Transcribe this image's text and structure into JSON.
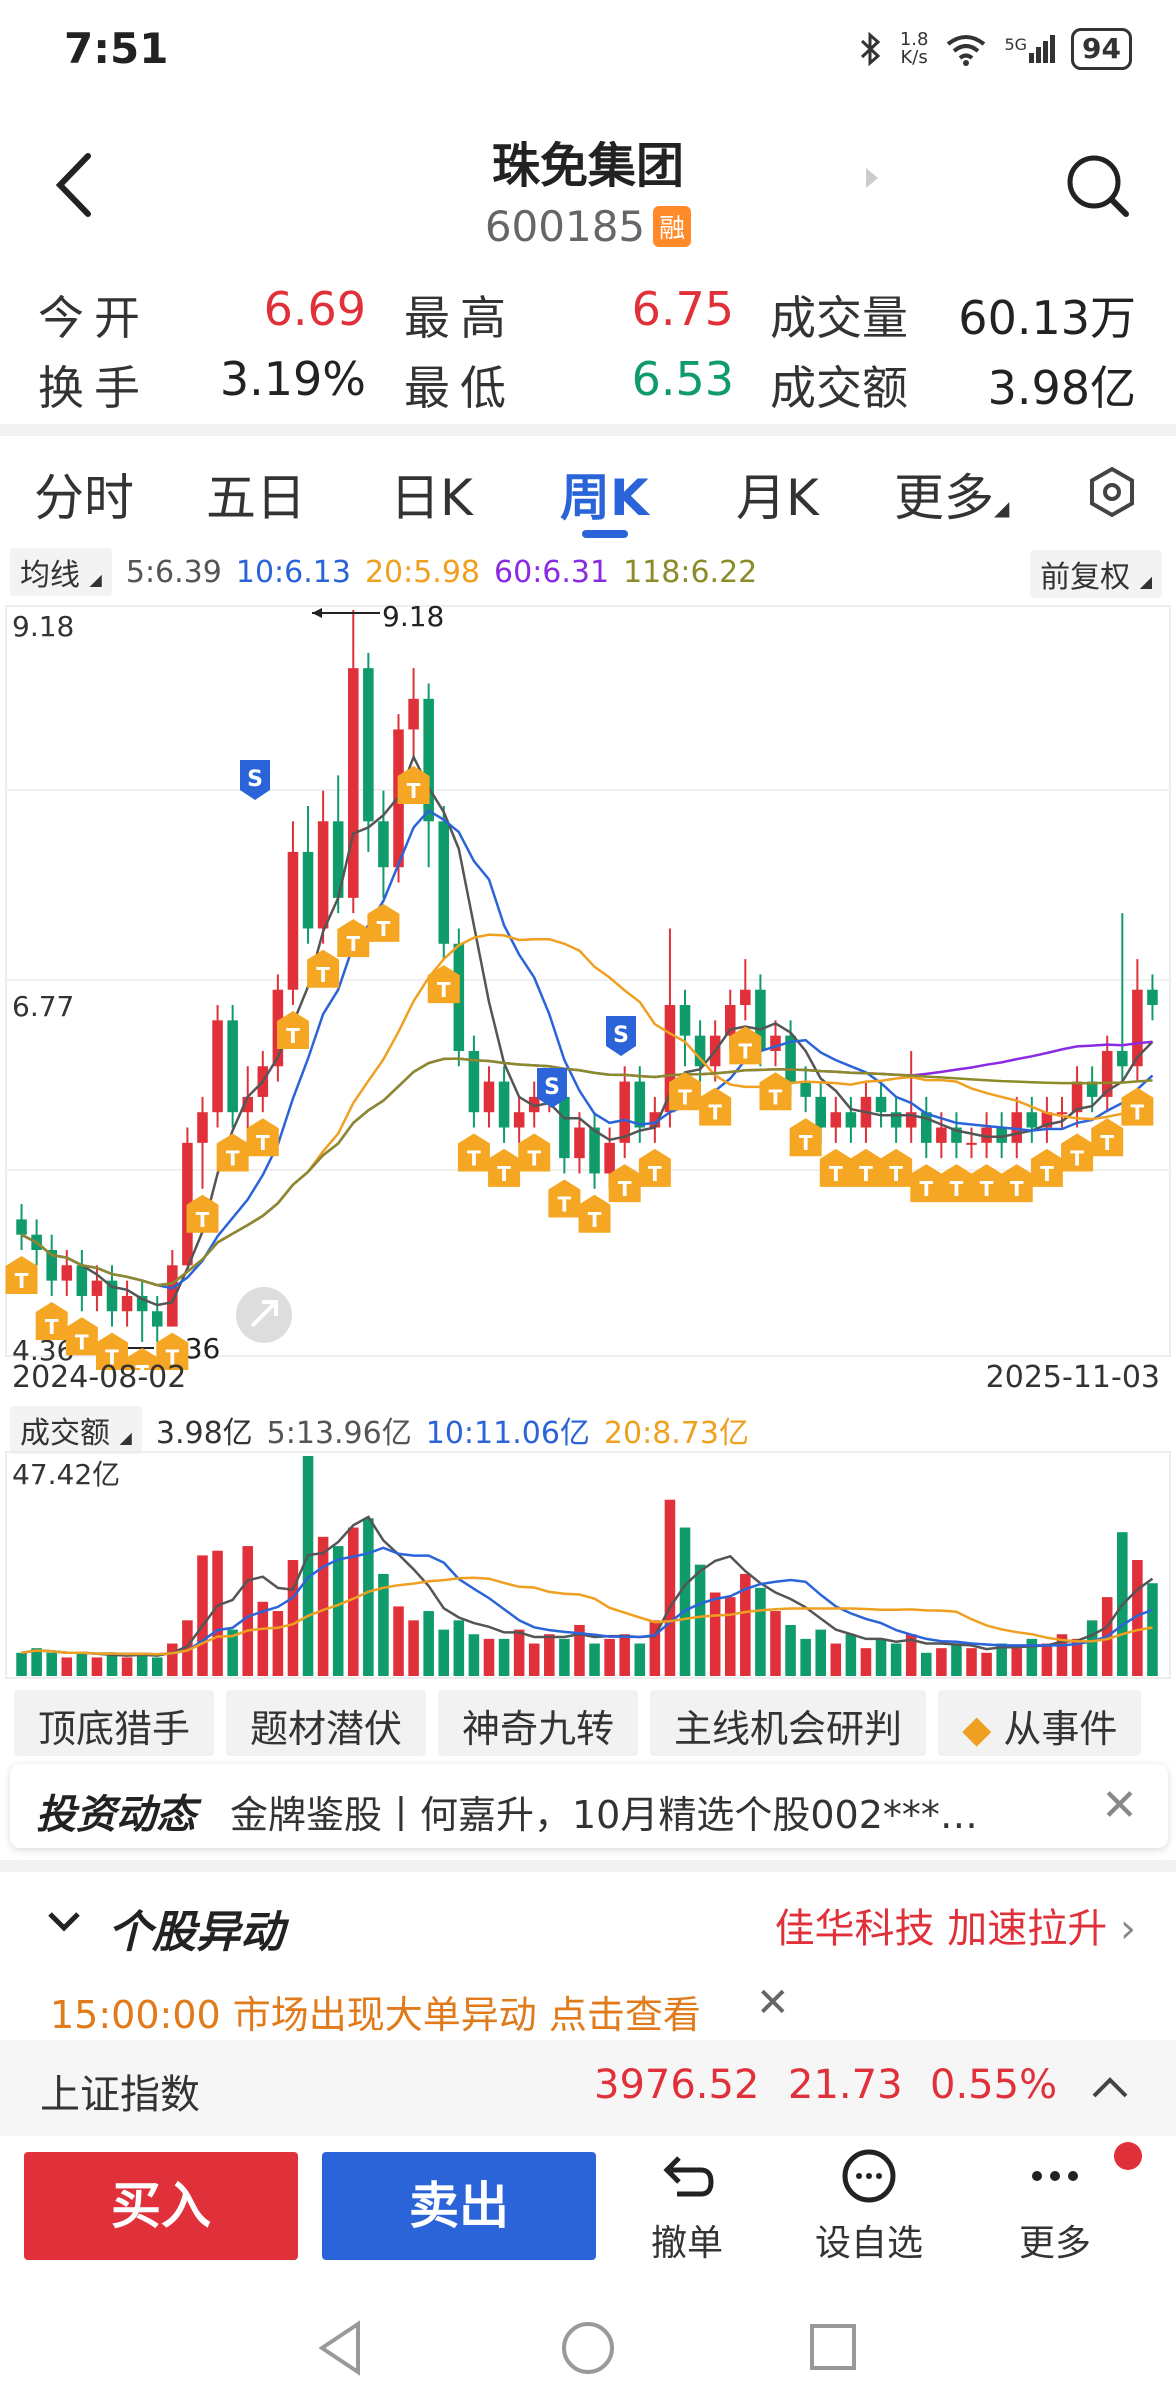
{
  "status": {
    "time": "7:51",
    "net_speed": "1.8\nK/s",
    "net_speed_top": "1.8",
    "net_speed_bottom": "K/s",
    "signal": "5G",
    "battery": "94"
  },
  "header": {
    "name": "珠免集团",
    "code": "600185",
    "badge": "融"
  },
  "quote": {
    "open_label": "今开",
    "open": "6.69",
    "high_label": "最高",
    "high": "6.75",
    "volume_label": "成交量",
    "volume": "60.13万",
    "turnover_label": "换手",
    "turnover": "3.19%",
    "low_label": "最低",
    "low": "6.53",
    "amount_label": "成交额",
    "amount": "3.98亿"
  },
  "tabs": [
    "分时",
    "五日",
    "日K",
    "周K",
    "月K",
    "更多"
  ],
  "active_tab": "周K",
  "ma": {
    "chip": "均线",
    "ma5": "5:6.39",
    "ma10": "10:6.13",
    "ma20": "20:5.98",
    "ma60": "60:6.31",
    "ma118": "118:6.22",
    "adjust": "前复权"
  },
  "colors": {
    "up": "#e0313a",
    "down": "#0f9b6a",
    "ma5": "#555555",
    "ma10": "#2a64d8",
    "ma20": "#f0a020",
    "ma60": "#8a2be2",
    "ma118": "#8b8b2a",
    "accent": "#2a64d8"
  },
  "chart_data": {
    "type": "candlestick",
    "period": "weekly",
    "y_max_label": "9.18",
    "y_mid_label": "6.77",
    "y_min_label": "4.36",
    "max_annotation": "9.18",
    "min_annotation": "4.36",
    "date_start": "2024-08-02",
    "date_end": "2025-11-03",
    "ylim": [
      4.36,
      9.18
    ],
    "candles": [
      [
        5.2,
        5.1,
        5.3,
        5.0
      ],
      [
        5.1,
        5.0,
        5.2,
        4.9
      ],
      [
        5.0,
        4.8,
        5.1,
        4.7
      ],
      [
        4.8,
        4.9,
        5.0,
        4.7
      ],
      [
        4.9,
        4.7,
        5.0,
        4.6
      ],
      [
        4.7,
        4.8,
        4.9,
        4.6
      ],
      [
        4.8,
        4.6,
        4.9,
        4.5
      ],
      [
        4.6,
        4.7,
        4.8,
        4.5
      ],
      [
        4.7,
        4.6,
        4.8,
        4.4
      ],
      [
        4.6,
        4.5,
        4.7,
        4.4
      ],
      [
        4.5,
        4.9,
        5.0,
        4.5
      ],
      [
        4.9,
        5.7,
        5.8,
        4.9
      ],
      [
        5.7,
        5.9,
        6.0,
        5.4
      ],
      [
        5.9,
        6.5,
        6.6,
        5.8
      ],
      [
        6.5,
        5.9,
        6.6,
        5.8
      ],
      [
        5.9,
        6.0,
        6.2,
        5.7
      ],
      [
        6.0,
        6.2,
        6.3,
        5.9
      ],
      [
        6.2,
        6.7,
        6.8,
        6.1
      ],
      [
        6.7,
        7.6,
        7.8,
        6.6
      ],
      [
        7.6,
        7.1,
        7.9,
        7.0
      ],
      [
        7.1,
        7.8,
        8.0,
        7.0
      ],
      [
        7.8,
        7.3,
        8.1,
        7.2
      ],
      [
        7.3,
        8.8,
        9.18,
        7.2
      ],
      [
        8.8,
        7.8,
        8.9,
        7.6
      ],
      [
        7.8,
        7.5,
        8.0,
        7.3
      ],
      [
        7.5,
        8.4,
        8.5,
        7.4
      ],
      [
        8.4,
        8.6,
        8.8,
        8.2
      ],
      [
        8.6,
        7.8,
        8.7,
        7.5
      ],
      [
        7.8,
        7.0,
        7.9,
        6.9
      ],
      [
        7.0,
        6.3,
        7.1,
        6.2
      ],
      [
        6.3,
        5.9,
        6.4,
        5.8
      ],
      [
        5.9,
        6.1,
        6.2,
        5.8
      ],
      [
        6.1,
        5.8,
        6.2,
        5.7
      ],
      [
        5.8,
        5.9,
        6.0,
        5.7
      ],
      [
        5.9,
        6.0,
        6.1,
        5.8
      ],
      [
        6.0,
        6.0,
        6.1,
        5.9
      ],
      [
        6.0,
        5.6,
        6.1,
        5.5
      ],
      [
        5.6,
        5.8,
        5.9,
        5.5
      ],
      [
        5.8,
        5.5,
        5.9,
        5.4
      ],
      [
        5.5,
        5.7,
        5.8,
        5.4
      ],
      [
        5.7,
        6.1,
        6.2,
        5.6
      ],
      [
        6.1,
        5.8,
        6.2,
        5.7
      ],
      [
        5.8,
        5.9,
        6.0,
        5.7
      ],
      [
        5.9,
        6.6,
        7.1,
        5.8
      ],
      [
        6.6,
        6.4,
        6.7,
        6.2
      ],
      [
        6.4,
        6.2,
        6.5,
        6.1
      ],
      [
        6.2,
        6.4,
        6.5,
        6.1
      ],
      [
        6.4,
        6.6,
        6.7,
        6.3
      ],
      [
        6.6,
        6.7,
        6.9,
        6.5
      ],
      [
        6.7,
        6.3,
        6.8,
        6.2
      ],
      [
        6.3,
        6.4,
        6.5,
        6.2
      ],
      [
        6.4,
        6.1,
        6.5,
        6.0
      ],
      [
        6.1,
        6.0,
        6.2,
        5.9
      ],
      [
        6.0,
        5.8,
        6.1,
        5.7
      ],
      [
        5.8,
        5.9,
        6.0,
        5.7
      ],
      [
        5.9,
        5.8,
        6.0,
        5.7
      ],
      [
        5.8,
        6.0,
        6.1,
        5.7
      ],
      [
        6.0,
        5.9,
        6.1,
        5.8
      ],
      [
        5.9,
        5.8,
        6.0,
        5.7
      ],
      [
        5.8,
        5.9,
        6.3,
        5.7
      ],
      [
        5.9,
        5.7,
        6.0,
        5.6
      ],
      [
        5.7,
        5.8,
        5.9,
        5.6
      ],
      [
        5.8,
        5.7,
        5.9,
        5.6
      ],
      [
        5.7,
        5.7,
        5.8,
        5.6
      ],
      [
        5.7,
        5.8,
        5.9,
        5.6
      ],
      [
        5.8,
        5.7,
        5.9,
        5.6
      ],
      [
        5.7,
        5.9,
        6.0,
        5.6
      ],
      [
        5.9,
        5.8,
        6.0,
        5.7
      ],
      [
        5.8,
        5.9,
        6.0,
        5.7
      ],
      [
        5.9,
        5.9,
        6.0,
        5.8
      ],
      [
        5.9,
        6.1,
        6.2,
        5.8
      ],
      [
        6.1,
        6.0,
        6.2,
        5.9
      ],
      [
        6.0,
        6.3,
        6.4,
        5.9
      ],
      [
        6.3,
        6.2,
        7.2,
        6.1
      ],
      [
        6.2,
        6.7,
        6.9,
        6.1
      ],
      [
        6.7,
        6.6,
        6.8,
        6.5
      ]
    ],
    "volume": {
      "label": "成交额",
      "current": "3.98亿",
      "ma5": "5:13.96亿",
      "ma10": "10:11.06亿",
      "ma20": "20:8.73亿",
      "max_label": "47.42亿",
      "values": [
        5,
        6,
        5,
        4,
        5,
        4,
        5,
        4,
        5,
        4,
        7,
        12,
        26,
        27,
        10,
        28,
        16,
        14,
        25,
        47.42,
        30,
        28,
        32,
        34,
        22,
        15,
        12,
        14,
        10,
        12,
        9,
        8,
        8,
        10,
        7,
        9,
        8,
        11,
        7,
        8,
        9,
        7,
        12,
        38,
        32,
        24,
        18,
        17,
        22,
        19,
        14,
        11,
        8,
        10,
        7,
        9,
        6,
        8,
        7,
        9,
        5,
        6,
        7,
        6,
        5,
        7,
        6,
        8,
        7,
        9,
        8,
        12,
        17,
        31,
        25,
        20
      ]
    }
  },
  "features": [
    "顶底猎手",
    "题材潜伏",
    "神奇九转",
    "主线机会研判",
    "从事件"
  ],
  "news": {
    "logo": "投资动态",
    "text": "金牌鉴股丨何嘉升，10月精选个股002***…",
    "close": "✕"
  },
  "movement": {
    "title": "个股异动",
    "right": "佳华科技 加速拉升",
    "alert": "15:00:00 市场出现大单异动 点击查看",
    "alert_close": "✕"
  },
  "index": {
    "name": "上证指数",
    "price": "3976.52",
    "change": "21.73",
    "pct": "0.55%"
  },
  "actions": {
    "buy": "买入",
    "sell": "卖出",
    "cancel": "撤单",
    "watch": "设自选",
    "more": "更多"
  }
}
